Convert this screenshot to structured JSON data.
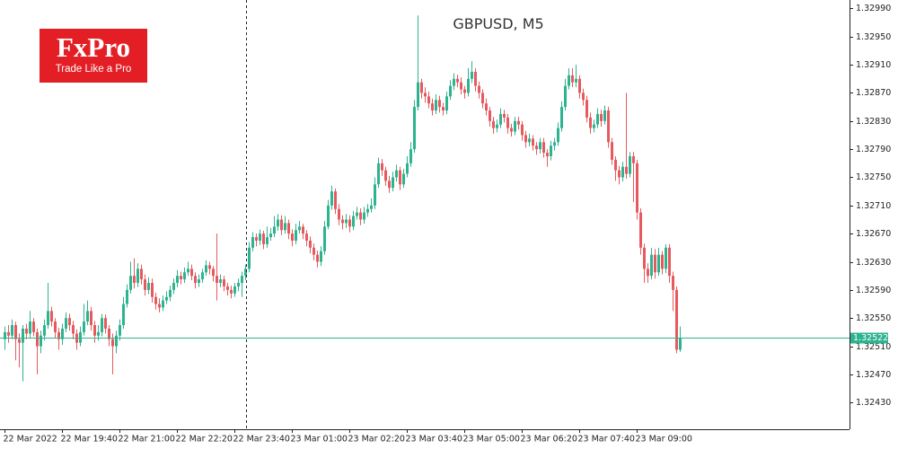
{
  "logo": {
    "brand": "FxPro",
    "tagline": "Trade Like a Pro"
  },
  "chart_data": {
    "type": "candlestick",
    "title": "GBPUSD, M5",
    "up_color": "#2db38f",
    "down_color": "#e65a5f",
    "xlim": [
      -1.25,
      235.25
    ],
    "ylim": [
      1.32392,
      1.33002
    ],
    "xticks": [
      {
        "value": 0,
        "label": "22 Mar 2022"
      },
      {
        "value": 16,
        "label": "22 Mar 19:40"
      },
      {
        "value": 32,
        "label": "22 Mar 21:00"
      },
      {
        "value": 48,
        "label": "22 Mar 22:20"
      },
      {
        "value": 64,
        "label": "22 Mar 23:40"
      },
      {
        "value": 80,
        "label": "23 Mar 01:00"
      },
      {
        "value": 96,
        "label": "23 Mar 02:20"
      },
      {
        "value": 112,
        "label": "23 Mar 03:40"
      },
      {
        "value": 128,
        "label": "23 Mar 05:00"
      },
      {
        "value": 144,
        "label": "23 Mar 06:20"
      },
      {
        "value": 160,
        "label": "23 Mar 07:40"
      },
      {
        "value": 176,
        "label": "23 Mar 09:00"
      }
    ],
    "yticks": [
      {
        "value": 1.3299,
        "label": "1.32990"
      },
      {
        "value": 1.3295,
        "label": "1.32950"
      },
      {
        "value": 1.3291,
        "label": "1.32910"
      },
      {
        "value": 1.3287,
        "label": "1.32870"
      },
      {
        "value": 1.3283,
        "label": "1.32830"
      },
      {
        "value": 1.3279,
        "label": "1.32790"
      },
      {
        "value": 1.3275,
        "label": "1.32750"
      },
      {
        "value": 1.3271,
        "label": "1.32710"
      },
      {
        "value": 1.3267,
        "label": "1.32670"
      },
      {
        "value": 1.3263,
        "label": "1.32630"
      },
      {
        "value": 1.3259,
        "label": "1.32590"
      },
      {
        "value": 1.3255,
        "label": "1.32550"
      },
      {
        "value": 1.3251,
        "label": "1.32510"
      },
      {
        "value": 1.3247,
        "label": "1.32470"
      },
      {
        "value": 1.3243,
        "label": "1.32430"
      }
    ],
    "last_price": {
      "value": 1.32522,
      "label": "1.32522"
    },
    "open": [
      1.3252,
      1.3253,
      1.32525,
      1.3254,
      1.3252,
      1.32515,
      1.32535,
      1.32528,
      1.32545,
      1.3253,
      1.3251,
      1.32525,
      1.3254,
      1.3256,
      1.32545,
      1.3253,
      1.3252,
      1.32535,
      1.3255,
      1.3254,
      1.32528,
      1.32515,
      1.3253,
      1.32545,
      1.3256,
      1.3254,
      1.32525,
      1.3253,
      1.3255,
      1.32535,
      1.3252,
      1.3251,
      1.32525,
      1.3254,
      1.3257,
      1.3259,
      1.3261,
      1.326,
      1.3262,
      1.32605,
      1.3259,
      1.326,
      1.3258,
      1.3257,
      1.32565,
      1.32575,
      1.3258,
      1.3259,
      1.326,
      1.3261,
      1.32605,
      1.32615,
      1.3262,
      1.3261,
      1.326,
      1.32605,
      1.32615,
      1.32625,
      1.3262,
      1.3261,
      1.326,
      1.32605,
      1.32595,
      1.3259,
      1.32585,
      1.32595,
      1.326,
      1.3261,
      1.3262,
      1.3265,
      1.32665,
      1.3266,
      1.3267,
      1.32655,
      1.32665,
      1.3267,
      1.3268,
      1.3269,
      1.32675,
      1.32685,
      1.3267,
      1.3266,
      1.32675,
      1.3268,
      1.3267,
      1.3266,
      1.3265,
      1.3264,
      1.3263,
      1.32645,
      1.3268,
      1.3271,
      1.3273,
      1.32705,
      1.3269,
      1.32685,
      1.3269,
      1.3268,
      1.32695,
      1.327,
      1.3269,
      1.327,
      1.32705,
      1.3271,
      1.3274,
      1.3277,
      1.3276,
      1.32745,
      1.32735,
      1.3275,
      1.3276,
      1.3274,
      1.32755,
      1.3277,
      1.3279,
      1.3285,
      1.32885,
      1.3287,
      1.32865,
      1.32855,
      1.32845,
      1.3286,
      1.3285,
      1.32845,
      1.32865,
      1.3288,
      1.3289,
      1.32885,
      1.32875,
      1.3287,
      1.3289,
      1.329,
      1.3288,
      1.3287,
      1.32855,
      1.32845,
      1.3283,
      1.3282,
      1.32825,
      1.3284,
      1.32835,
      1.3282,
      1.32815,
      1.3283,
      1.32825,
      1.3281,
      1.328,
      1.32805,
      1.32795,
      1.3279,
      1.328,
      1.32785,
      1.3278,
      1.32795,
      1.328,
      1.3282,
      1.3285,
      1.3288,
      1.32895,
      1.32885,
      1.3289,
      1.3287,
      1.3286,
      1.32835,
      1.3282,
      1.32825,
      1.3284,
      1.3283,
      1.32845,
      1.328,
      1.32775,
      1.3276,
      1.3275,
      1.32765,
      1.32755,
      1.3278,
      1.3277,
      1.327,
      1.3265,
      1.3262,
      1.3261,
      1.3264,
      1.32615,
      1.3264,
      1.3262,
      1.3265,
      1.3261,
      1.3259,
      1.32505
    ],
    "high": [
      1.32538,
      1.3254,
      1.32548,
      1.32545,
      1.32528,
      1.3254,
      1.32542,
      1.3256,
      1.3255,
      1.32535,
      1.32532,
      1.32548,
      1.326,
      1.32566,
      1.3255,
      1.32536,
      1.32542,
      1.32558,
      1.32556,
      1.32546,
      1.32534,
      1.32538,
      1.3257,
      1.32575,
      1.32566,
      1.32546,
      1.3254,
      1.32556,
      1.32555,
      1.3254,
      1.32528,
      1.32532,
      1.32548,
      1.3258,
      1.32598,
      1.3263,
      1.32635,
      1.32628,
      1.32626,
      1.32612,
      1.32608,
      1.32606,
      1.32586,
      1.32578,
      1.32582,
      1.32588,
      1.32596,
      1.32606,
      1.32618,
      1.32616,
      1.32622,
      1.3263,
      1.32626,
      1.32615,
      1.32612,
      1.3262,
      1.32632,
      1.3263,
      1.32624,
      1.3267,
      1.32612,
      1.3261,
      1.326,
      1.32596,
      1.326,
      1.32606,
      1.32616,
      1.32626,
      1.32658,
      1.32672,
      1.3267,
      1.32676,
      1.32674,
      1.3268,
      1.32678,
      1.32695,
      1.32698,
      1.32696,
      1.32695,
      1.3269,
      1.32676,
      1.32684,
      1.32688,
      1.32684,
      1.32675,
      1.32666,
      1.32656,
      1.32646,
      1.32652,
      1.32688,
      1.32718,
      1.32738,
      1.32734,
      1.32712,
      1.32696,
      1.32698,
      1.32696,
      1.32702,
      1.32708,
      1.32706,
      1.32708,
      1.32712,
      1.3272,
      1.3275,
      1.32778,
      1.32776,
      1.32765,
      1.32752,
      1.32758,
      1.32768,
      1.32765,
      1.32762,
      1.3278,
      1.328,
      1.3286,
      1.3298,
      1.3289,
      1.32878,
      1.32872,
      1.32862,
      1.32868,
      1.32866,
      1.32856,
      1.32872,
      1.32888,
      1.32898,
      1.32896,
      1.32892,
      1.3288,
      1.32905,
      1.32915,
      1.32905,
      1.32886,
      1.32875,
      1.32862,
      1.3285,
      1.32836,
      1.32832,
      1.32848,
      1.32846,
      1.3284,
      1.32826,
      1.32836,
      1.32836,
      1.3283,
      1.32816,
      1.32812,
      1.3281,
      1.328,
      1.32806,
      1.32806,
      1.3279,
      1.32802,
      1.32806,
      1.32828,
      1.32858,
      1.3289,
      1.32905,
      1.32905,
      1.3291,
      1.32895,
      1.32876,
      1.32866,
      1.32842,
      1.32832,
      1.32848,
      1.32846,
      1.32852,
      1.3285,
      1.32806,
      1.3278,
      1.32766,
      1.32772,
      1.3287,
      1.32786,
      1.32786,
      1.32775,
      1.32706,
      1.32656,
      1.32628,
      1.3265,
      1.32648,
      1.3265,
      1.32645,
      1.32655,
      1.32655,
      1.32616,
      1.32595,
      1.32538
    ],
    "low": [
      1.32505,
      1.32515,
      1.3252,
      1.3249,
      1.3248,
      1.3246,
      1.3252,
      1.32522,
      1.32524,
      1.3247,
      1.325,
      1.32518,
      1.32535,
      1.32538,
      1.32522,
      1.32505,
      1.32512,
      1.3253,
      1.32532,
      1.3252,
      1.32505,
      1.3251,
      1.32525,
      1.3254,
      1.32532,
      1.32515,
      1.32518,
      1.32524,
      1.32528,
      1.3251,
      1.3247,
      1.325,
      1.32518,
      1.32535,
      1.32565,
      1.32585,
      1.32592,
      1.32594,
      1.32598,
      1.32582,
      1.32584,
      1.32572,
      1.32562,
      1.32558,
      1.3256,
      1.3257,
      1.32574,
      1.32584,
      1.32594,
      1.32598,
      1.326,
      1.3261,
      1.32604,
      1.32592,
      1.32594,
      1.326,
      1.3261,
      1.32612,
      1.32602,
      1.32575,
      1.32594,
      1.32588,
      1.32582,
      1.32578,
      1.3258,
      1.32588,
      1.3258,
      1.32604,
      1.32615,
      1.32645,
      1.32652,
      1.32654,
      1.32648,
      1.3265,
      1.3266,
      1.32665,
      1.32674,
      1.32668,
      1.3267,
      1.32662,
      1.32652,
      1.32655,
      1.3267,
      1.32662,
      1.32652,
      1.32642,
      1.32632,
      1.32622,
      1.32624,
      1.3264,
      1.32676,
      1.32704,
      1.32698,
      1.32682,
      1.32676,
      1.32678,
      1.32672,
      1.32675,
      1.3269,
      1.32682,
      1.32684,
      1.32694,
      1.327,
      1.32705,
      1.32735,
      1.32752,
      1.32738,
      1.32728,
      1.3273,
      1.32744,
      1.32732,
      1.32735,
      1.3275,
      1.32765,
      1.32785,
      1.32845,
      1.32862,
      1.32856,
      1.32848,
      1.32838,
      1.3284,
      1.32842,
      1.32838,
      1.3284,
      1.3286,
      1.32874,
      1.32878,
      1.32868,
      1.32862,
      1.32865,
      1.32884,
      1.32872,
      1.32862,
      1.32848,
      1.32838,
      1.32822,
      1.32812,
      1.32814,
      1.3282,
      1.32828,
      1.32812,
      1.32808,
      1.3281,
      1.32818,
      1.32802,
      1.32792,
      1.32794,
      1.32788,
      1.32782,
      1.32784,
      1.32778,
      1.32765,
      1.32774,
      1.32788,
      1.32795,
      1.32815,
      1.32845,
      1.32875,
      1.32878,
      1.32878,
      1.32862,
      1.32852,
      1.32828,
      1.32812,
      1.32814,
      1.3282,
      1.32822,
      1.32825,
      1.32792,
      1.32768,
      1.32745,
      1.3274,
      1.32744,
      1.32748,
      1.3275,
      1.32715,
      1.3269,
      1.3264,
      1.326,
      1.326,
      1.32605,
      1.32606,
      1.3261,
      1.32612,
      1.32614,
      1.326,
      1.3256,
      1.325,
      1.32502
    ],
    "close": [
      1.3253,
      1.32525,
      1.3254,
      1.3252,
      1.32515,
      1.32535,
      1.32528,
      1.32545,
      1.3253,
      1.3251,
      1.32525,
      1.3254,
      1.3256,
      1.32545,
      1.3253,
      1.3252,
      1.32535,
      1.3255,
      1.3254,
      1.32528,
      1.32515,
      1.3253,
      1.32545,
      1.3256,
      1.3254,
      1.32525,
      1.3253,
      1.3255,
      1.32535,
      1.3252,
      1.3251,
      1.32525,
      1.3254,
      1.3257,
      1.3259,
      1.3261,
      1.326,
      1.3262,
      1.32605,
      1.3259,
      1.326,
      1.3258,
      1.3257,
      1.32565,
      1.32575,
      1.3258,
      1.3259,
      1.326,
      1.3261,
      1.32605,
      1.32615,
      1.3262,
      1.3261,
      1.326,
      1.32605,
      1.32615,
      1.32625,
      1.3262,
      1.3261,
      1.326,
      1.32605,
      1.32595,
      1.3259,
      1.32585,
      1.32595,
      1.326,
      1.3261,
      1.3262,
      1.3265,
      1.32665,
      1.3266,
      1.3267,
      1.32655,
      1.32665,
      1.3267,
      1.3268,
      1.3269,
      1.32675,
      1.32685,
      1.3267,
      1.3266,
      1.32675,
      1.3268,
      1.3267,
      1.3266,
      1.3265,
      1.3264,
      1.3263,
      1.32645,
      1.3268,
      1.3271,
      1.3273,
      1.32705,
      1.3269,
      1.32685,
      1.3269,
      1.3268,
      1.32695,
      1.327,
      1.3269,
      1.327,
      1.32705,
      1.3271,
      1.3274,
      1.3277,
      1.3276,
      1.32745,
      1.32735,
      1.3275,
      1.3276,
      1.3274,
      1.32755,
      1.3277,
      1.3279,
      1.3285,
      1.32885,
      1.3287,
      1.32865,
      1.32855,
      1.32845,
      1.3286,
      1.3285,
      1.32845,
      1.32865,
      1.3288,
      1.3289,
      1.32885,
      1.32875,
      1.3287,
      1.3289,
      1.329,
      1.3288,
      1.3287,
      1.32855,
      1.32845,
      1.3283,
      1.3282,
      1.32825,
      1.3284,
      1.32835,
      1.3282,
      1.32815,
      1.3283,
      1.32825,
      1.3281,
      1.328,
      1.32805,
      1.32795,
      1.3279,
      1.328,
      1.32785,
      1.3278,
      1.32795,
      1.328,
      1.3282,
      1.3285,
      1.3288,
      1.32895,
      1.32885,
      1.3289,
      1.3287,
      1.3286,
      1.32835,
      1.3282,
      1.32825,
      1.3284,
      1.3283,
      1.32845,
      1.328,
      1.32775,
      1.3276,
      1.3275,
      1.32765,
      1.32755,
      1.3278,
      1.3277,
      1.327,
      1.3265,
      1.3262,
      1.3261,
      1.3264,
      1.32615,
      1.3264,
      1.3262,
      1.3265,
      1.3261,
      1.3259,
      1.32505,
      1.32522
    ]
  }
}
